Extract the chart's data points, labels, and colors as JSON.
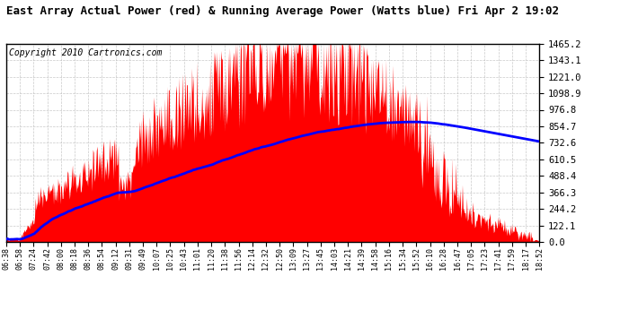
{
  "title": "East Array Actual Power (red) & Running Average Power (Watts blue) Fri Apr 2 19:02",
  "copyright": "Copyright 2010 Cartronics.com",
  "yticks": [
    0.0,
    122.1,
    244.2,
    366.3,
    488.4,
    610.5,
    732.6,
    854.7,
    976.8,
    1098.9,
    1221.0,
    1343.1,
    1465.2
  ],
  "ylim": [
    0,
    1465.2
  ],
  "xtick_labels": [
    "06:38",
    "06:58",
    "07:24",
    "07:42",
    "08:00",
    "08:18",
    "08:36",
    "08:54",
    "09:12",
    "09:31",
    "09:49",
    "10:07",
    "10:25",
    "10:43",
    "11:01",
    "11:20",
    "11:38",
    "11:56",
    "12:14",
    "12:32",
    "12:50",
    "13:09",
    "13:27",
    "13:45",
    "14:03",
    "14:21",
    "14:39",
    "14:58",
    "15:16",
    "15:34",
    "15:52",
    "16:10",
    "16:28",
    "16:47",
    "17:05",
    "17:23",
    "17:41",
    "17:59",
    "18:17",
    "18:52"
  ],
  "bar_color": "#ff0000",
  "avg_color": "#0000ff",
  "background_color": "#ffffff",
  "grid_color": "#bbbbbb",
  "title_fontsize": 9,
  "copyright_fontsize": 7
}
